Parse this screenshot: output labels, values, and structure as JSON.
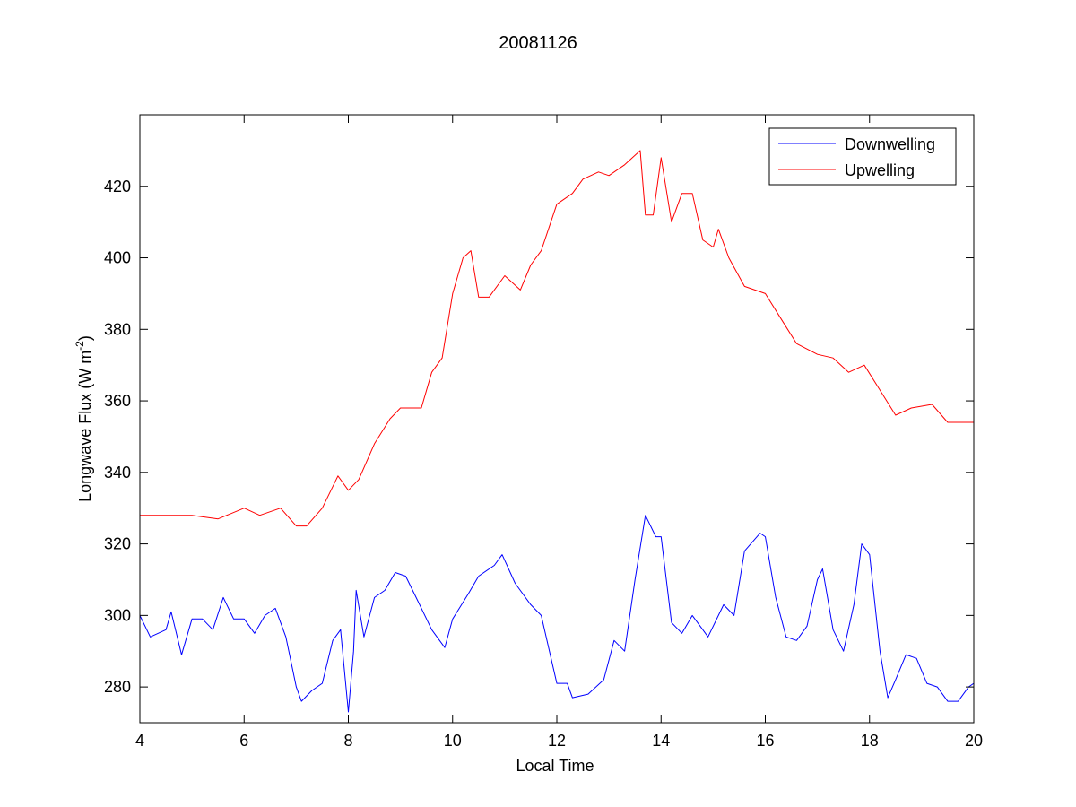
{
  "chart_data": {
    "type": "line",
    "title": "20081126",
    "xlabel": "Local Time",
    "ylabel_main": "Longwave Flux (W m",
    "ylabel_sup": "-2",
    "ylabel_end": ")",
    "xlim": [
      4,
      20
    ],
    "ylim": [
      270,
      440
    ],
    "xticks": [
      4,
      6,
      8,
      10,
      12,
      14,
      16,
      18,
      20
    ],
    "yticks": [
      280,
      300,
      320,
      340,
      360,
      380,
      400,
      420
    ],
    "grid": false,
    "legend_position": "top-right",
    "series": [
      {
        "name": "Downwelling",
        "color": "#0000ff",
        "x": [
          4,
          4.2,
          4.5,
          4.6,
          4.8,
          5,
          5.2,
          5.4,
          5.6,
          5.8,
          6,
          6.2,
          6.4,
          6.6,
          6.8,
          7,
          7.1,
          7.3,
          7.5,
          7.7,
          7.85,
          8,
          8.1,
          8.15,
          8.3,
          8.5,
          8.7,
          8.9,
          9.1,
          9.3,
          9.6,
          9.85,
          10,
          10.3,
          10.5,
          10.8,
          10.95,
          11.2,
          11.5,
          11.7,
          12,
          12.2,
          12.3,
          12.6,
          12.9,
          13.1,
          13.3,
          13.5,
          13.7,
          13.9,
          14,
          14.2,
          14.4,
          14.6,
          14.8,
          14.9,
          15.2,
          15.4,
          15.6,
          15.9,
          16,
          16.2,
          16.4,
          16.6,
          16.8,
          17,
          17.1,
          17.3,
          17.5,
          17.7,
          17.85,
          18,
          18.2,
          18.35,
          18.5,
          18.7,
          18.9,
          19.1,
          19.3,
          19.5,
          19.7,
          19.9,
          20
        ],
        "y": [
          300,
          294,
          296,
          301,
          289,
          299,
          299,
          296,
          305,
          299,
          299,
          295,
          300,
          302,
          294,
          280,
          276,
          279,
          281,
          293,
          296,
          273,
          290,
          307,
          294,
          305,
          307,
          312,
          311,
          305,
          296,
          291,
          299,
          306,
          311,
          314,
          317,
          309,
          303,
          300,
          281,
          281,
          277,
          278,
          282,
          293,
          290,
          310,
          328,
          322,
          322,
          298,
          295,
          300,
          296,
          294,
          303,
          300,
          318,
          323,
          322,
          305,
          294,
          293,
          297,
          310,
          313,
          296,
          290,
          303,
          320,
          317,
          290,
          277,
          282,
          289,
          288,
          281,
          280,
          276,
          276,
          280,
          281
        ]
      },
      {
        "name": "Upwelling",
        "color": "#ff0000",
        "x": [
          4,
          4.5,
          5,
          5.5,
          6,
          6.3,
          6.7,
          7,
          7.2,
          7.5,
          7.8,
          8,
          8.2,
          8.5,
          8.8,
          9,
          9.4,
          9.6,
          9.8,
          10,
          10.2,
          10.35,
          10.5,
          10.7,
          11,
          11.3,
          11.5,
          11.7,
          12,
          12.3,
          12.5,
          12.8,
          13,
          13.3,
          13.6,
          13.7,
          13.85,
          14,
          14.2,
          14.4,
          14.6,
          14.8,
          15,
          15.1,
          15.3,
          15.6,
          16,
          16.3,
          16.6,
          17,
          17.3,
          17.6,
          17.9,
          18.2,
          18.5,
          18.8,
          19.2,
          19.5,
          20
        ],
        "y": [
          328,
          328,
          328,
          327,
          330,
          328,
          330,
          325,
          325,
          330,
          339,
          335,
          338,
          348,
          355,
          358,
          358,
          368,
          372,
          390,
          400,
          402,
          389,
          389,
          395,
          391,
          398,
          402,
          415,
          418,
          422,
          424,
          423,
          426,
          430,
          412,
          412,
          428,
          410,
          418,
          418,
          405,
          403,
          408,
          400,
          392,
          390,
          383,
          376,
          373,
          372,
          368,
          370,
          363,
          356,
          358,
          359,
          354,
          354
        ]
      }
    ]
  }
}
